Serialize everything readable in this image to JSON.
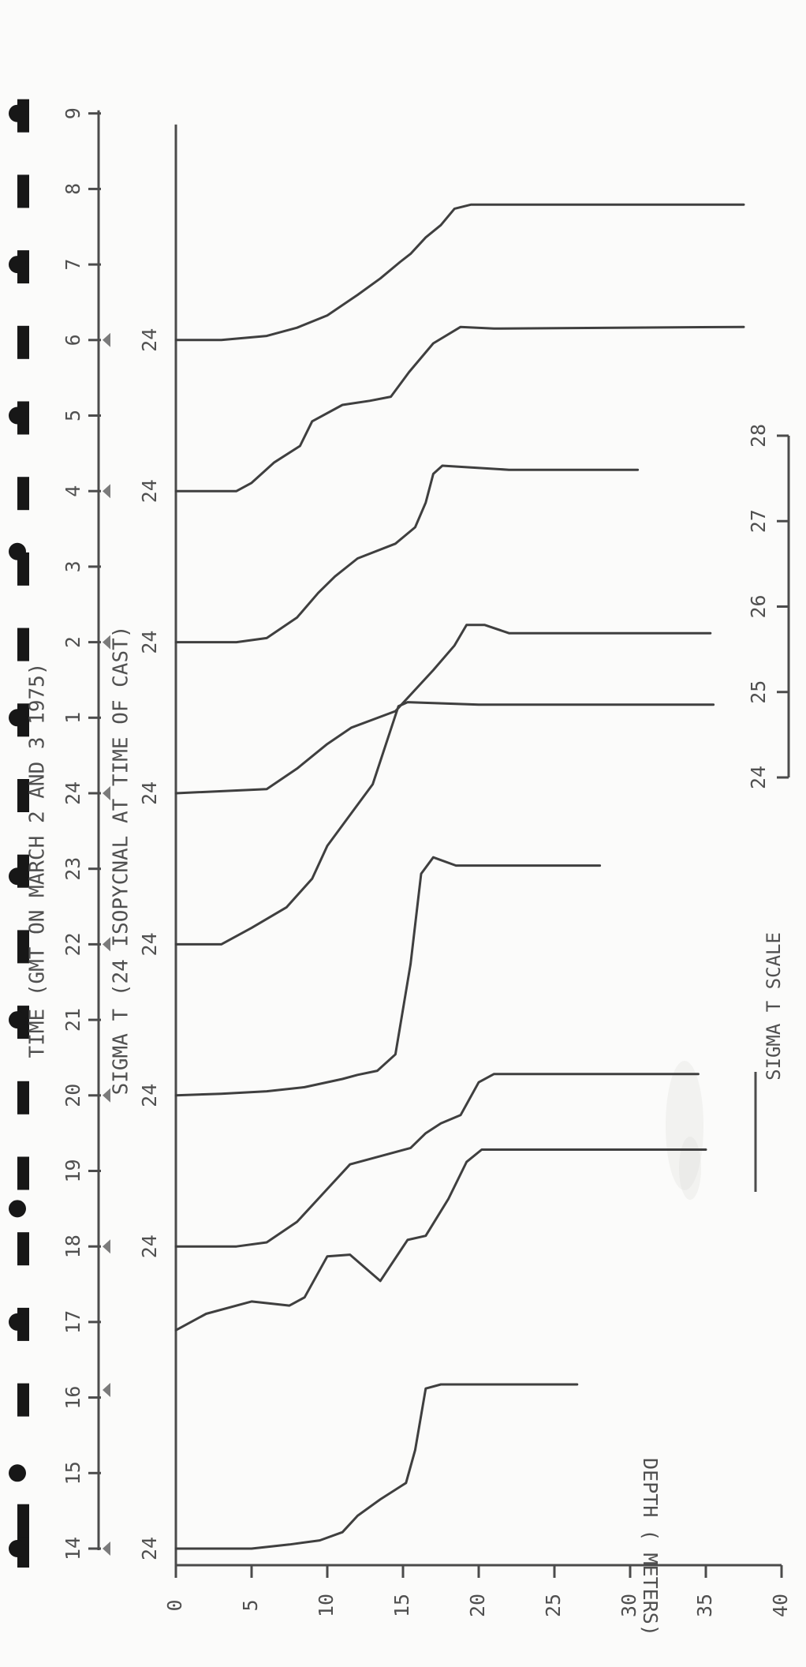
{
  "chart_data": {
    "type": "line",
    "title": "TIME (GMT ON MARCH 2 AND 3 1975)",
    "subtitle": "SIGMA T (24 ISOPYCNAL AT TIME OF CAST)",
    "xlabel": "DEPTH ( METERS)",
    "ylabel": "",
    "time_ticks": [
      "14",
      "15",
      "16",
      "17",
      "18",
      "19",
      "20",
      "21",
      "22",
      "23",
      "24",
      "1",
      "2",
      "3",
      "4",
      "5",
      "6",
      "7",
      "8",
      "9"
    ],
    "depth_ticks": [
      0,
      5,
      10,
      15,
      20,
      25,
      30,
      35,
      40
    ],
    "depth_range": [
      0,
      40
    ],
    "time_axis_range": [
      14,
      33
    ],
    "marker_bars": [
      14.0,
      14.4,
      16.0,
      17.0,
      18.0,
      19.0,
      20.0,
      21.0,
      22.0,
      23.0,
      24.0,
      25.0,
      26.0,
      27.0,
      28.0,
      29.0,
      30.0,
      31.0,
      32.0,
      33.0
    ],
    "marker_dots": [
      14.0,
      15.0,
      17.0,
      18.5,
      21.0,
      22.9,
      25.0,
      27.2,
      29.0,
      31.0,
      33.0
    ],
    "isopycnal_markers": [
      14.0,
      16.1,
      18.0,
      20.0,
      22.0,
      24.0,
      26.0,
      28.0,
      30.0
    ],
    "series": [
      {
        "baseline_time": 14.0,
        "baseline_label": "24",
        "points": [
          [
            0,
            24.0
          ],
          [
            5,
            24.0
          ],
          [
            7.5,
            24.05
          ],
          [
            9.5,
            24.1
          ],
          [
            11,
            24.2
          ],
          [
            12,
            24.4
          ],
          [
            13.5,
            24.6
          ],
          [
            15.2,
            24.8
          ],
          [
            15.8,
            25.2
          ],
          [
            16.5,
            25.95
          ],
          [
            17.5,
            26.0
          ],
          [
            20,
            26.0
          ],
          [
            26.5,
            26.0
          ]
        ]
      },
      {
        "baseline_time": 17.0,
        "baseline_label": "",
        "points": [
          [
            0,
            23.9
          ],
          [
            2,
            24.1
          ],
          [
            5,
            24.25
          ],
          [
            7.5,
            24.2
          ],
          [
            8.5,
            24.3
          ],
          [
            10,
            24.8
          ],
          [
            11.5,
            24.82
          ],
          [
            13.5,
            24.5
          ],
          [
            15.3,
            25.0
          ],
          [
            16.5,
            25.05
          ],
          [
            18,
            25.5
          ],
          [
            19.2,
            25.95
          ],
          [
            20.2,
            26.1
          ],
          [
            22,
            26.1
          ],
          [
            35,
            26.1
          ]
        ]
      },
      {
        "baseline_time": 18.0,
        "baseline_label": "24",
        "points": [
          [
            0,
            24.0
          ],
          [
            4,
            24.0
          ],
          [
            6,
            24.05
          ],
          [
            8,
            24.3
          ],
          [
            10,
            24.7
          ],
          [
            11.5,
            25.0
          ],
          [
            13.5,
            25.1
          ],
          [
            15.5,
            25.2
          ],
          [
            16.5,
            25.38
          ],
          [
            17.5,
            25.5
          ],
          [
            18.8,
            25.6
          ],
          [
            20,
            26.0
          ],
          [
            21,
            26.1
          ],
          [
            23,
            26.1
          ],
          [
            34.5,
            26.1
          ]
        ]
      },
      {
        "baseline_time": 20.0,
        "baseline_label": "24",
        "points": [
          [
            0,
            24.0
          ],
          [
            3,
            24.02
          ],
          [
            6,
            24.05
          ],
          [
            8.5,
            24.1
          ],
          [
            11,
            24.2
          ],
          [
            12,
            24.25
          ],
          [
            13.3,
            24.3
          ],
          [
            14.5,
            24.5
          ],
          [
            15.5,
            25.6
          ],
          [
            16.2,
            26.7
          ],
          [
            17,
            26.9
          ],
          [
            18.5,
            26.8
          ],
          [
            20,
            26.8
          ],
          [
            28,
            26.8
          ]
        ]
      },
      {
        "baseline_time": 22.0,
        "baseline_label": "24",
        "points": [
          [
            0,
            24.0
          ],
          [
            3,
            24.0
          ],
          [
            5,
            24.2
          ],
          [
            7.3,
            24.45
          ],
          [
            9,
            24.8
          ],
          [
            10,
            25.2
          ],
          [
            11.6,
            25.6
          ],
          [
            13,
            25.95
          ],
          [
            14.7,
            26.9
          ],
          [
            15.3,
            26.95
          ],
          [
            20,
            26.92
          ],
          [
            35.5,
            26.92
          ]
        ]
      },
      {
        "baseline_time": 24.0,
        "baseline_label": "24",
        "points": [
          [
            0,
            24.0
          ],
          [
            6,
            24.05
          ],
          [
            8,
            24.3
          ],
          [
            10,
            24.6
          ],
          [
            11.6,
            24.8
          ],
          [
            14.5,
            25.0
          ],
          [
            17,
            25.5
          ],
          [
            18.4,
            25.8
          ],
          [
            19.2,
            26.05
          ],
          [
            20.4,
            26.05
          ],
          [
            22,
            25.95
          ],
          [
            35.3,
            25.95
          ]
        ]
      },
      {
        "baseline_time": 26.0,
        "baseline_label": "24",
        "points": [
          [
            0,
            24.0
          ],
          [
            4,
            24.0
          ],
          [
            6,
            24.05
          ],
          [
            8,
            24.3
          ],
          [
            9.4,
            24.6
          ],
          [
            10.5,
            24.8
          ],
          [
            12,
            25.02
          ],
          [
            14.5,
            25.2
          ],
          [
            15.8,
            25.4
          ],
          [
            16.5,
            25.7
          ],
          [
            17,
            26.05
          ],
          [
            17.6,
            26.15
          ],
          [
            22,
            26.1
          ],
          [
            30.5,
            26.1
          ]
        ]
      },
      {
        "baseline_time": 28.0,
        "baseline_label": "24",
        "points": [
          [
            0,
            24.0
          ],
          [
            4,
            24.0
          ],
          [
            5,
            24.1
          ],
          [
            6.5,
            24.35
          ],
          [
            8.2,
            24.55
          ],
          [
            9,
            24.85
          ],
          [
            11,
            25.05
          ],
          [
            12.8,
            25.1
          ],
          [
            14.2,
            25.15
          ],
          [
            15.4,
            25.45
          ],
          [
            17,
            25.8
          ],
          [
            18.8,
            26.0
          ],
          [
            21,
            25.98
          ],
          [
            37.5,
            26.0
          ]
        ]
      },
      {
        "baseline_time": 30.0,
        "baseline_label": "24",
        "points": [
          [
            0,
            24.0
          ],
          [
            3,
            24.0
          ],
          [
            6,
            24.05
          ],
          [
            8,
            24.15
          ],
          [
            10,
            24.3
          ],
          [
            12,
            24.55
          ],
          [
            13.5,
            24.75
          ],
          [
            14.8,
            24.95
          ],
          [
            15.5,
            25.05
          ],
          [
            16.5,
            25.25
          ],
          [
            17.5,
            25.4
          ],
          [
            18.4,
            25.6
          ],
          [
            19.5,
            25.65
          ],
          [
            22,
            25.65
          ],
          [
            37.5,
            25.65
          ]
        ]
      }
    ],
    "scale": {
      "title": "SIGMA T SCALE",
      "values": [
        24,
        25,
        26,
        27,
        28
      ]
    }
  }
}
